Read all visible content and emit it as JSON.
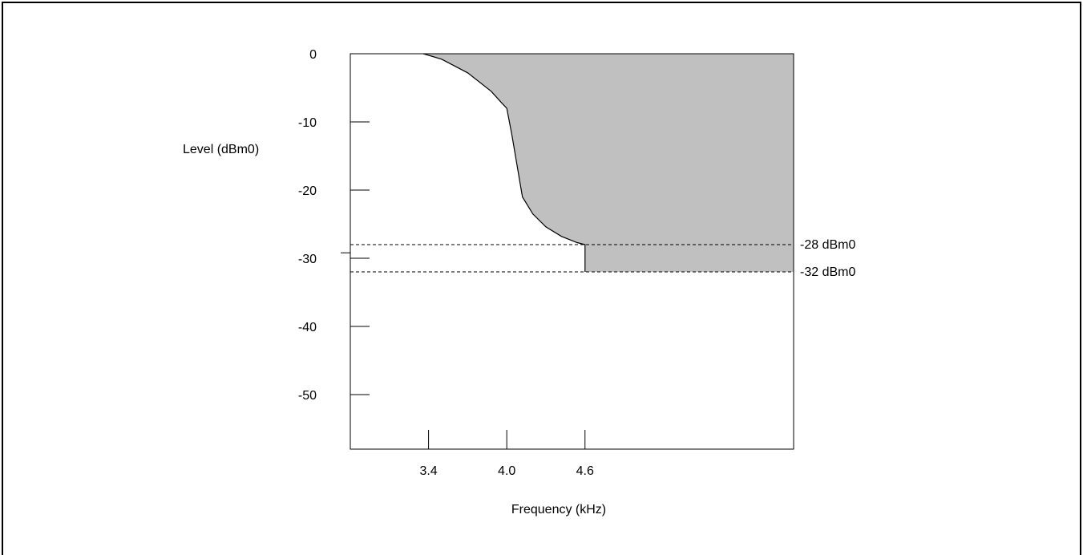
{
  "chart_data": {
    "type": "area",
    "xlabel": "Frequency (kHz)",
    "ylabel": "Level (dBm0)",
    "x_ticks": [
      {
        "value": 3.4,
        "label": "3.4"
      },
      {
        "value": 4.0,
        "label": "4.0"
      },
      {
        "value": 4.6,
        "label": "4.6"
      }
    ],
    "y_ticks": [
      {
        "value": 0,
        "label": "0"
      },
      {
        "value": -10,
        "label": "-10"
      },
      {
        "value": -20,
        "label": "-20"
      },
      {
        "value": -30,
        "label": "-30"
      },
      {
        "value": -40,
        "label": "-40"
      },
      {
        "value": -50,
        "label": "-50"
      }
    ],
    "xlim": [
      2.8,
      6.2
    ],
    "ylim": [
      -58,
      0
    ],
    "mask_curve": [
      [
        3.36,
        0
      ],
      [
        3.5,
        -0.8
      ],
      [
        3.7,
        -2.8
      ],
      [
        3.88,
        -5.5
      ],
      [
        3.96,
        -7.2
      ],
      [
        4.0,
        -8
      ],
      [
        4.04,
        -12
      ],
      [
        4.08,
        -16.5
      ],
      [
        4.12,
        -21
      ],
      [
        4.2,
        -23.5
      ],
      [
        4.3,
        -25.4
      ],
      [
        4.42,
        -26.8
      ],
      [
        4.54,
        -27.7
      ],
      [
        4.6,
        -28
      ]
    ],
    "step": {
      "x": 4.6,
      "from": -28,
      "to": -32
    },
    "reference_lines": [
      {
        "value": -28,
        "label": "-28 dBm0"
      },
      {
        "value": -32,
        "label": "-32 dBm0"
      }
    ],
    "extra_y_mark": -29.2,
    "fill_color": "#c0c0c0",
    "grid": false
  }
}
